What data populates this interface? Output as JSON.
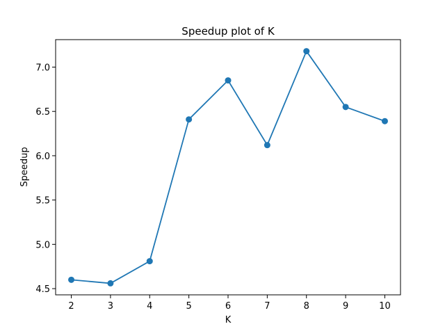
{
  "chart_data": {
    "type": "line",
    "title": "Speedup plot of K",
    "xlabel": "K",
    "ylabel": "Speedup",
    "x": [
      2,
      3,
      4,
      5,
      6,
      7,
      8,
      9,
      10
    ],
    "series": [
      {
        "values": [
          4.6,
          4.56,
          4.81,
          6.41,
          6.85,
          6.12,
          7.18,
          6.55,
          6.39
        ],
        "color": "#1f77b4",
        "marker": "circle"
      }
    ],
    "xlim": [
      1.6,
      10.4
    ],
    "ylim": [
      4.43,
      7.31
    ],
    "xticks": [
      "2",
      "3",
      "4",
      "5",
      "6",
      "7",
      "8",
      "9",
      "10"
    ],
    "yticks": [
      "4.5",
      "5.0",
      "5.5",
      "6.0",
      "6.5",
      "7.0"
    ],
    "ytick_values": [
      4.5,
      5.0,
      5.5,
      6.0,
      6.5,
      7.0
    ],
    "grid": false,
    "legend": "none"
  }
}
